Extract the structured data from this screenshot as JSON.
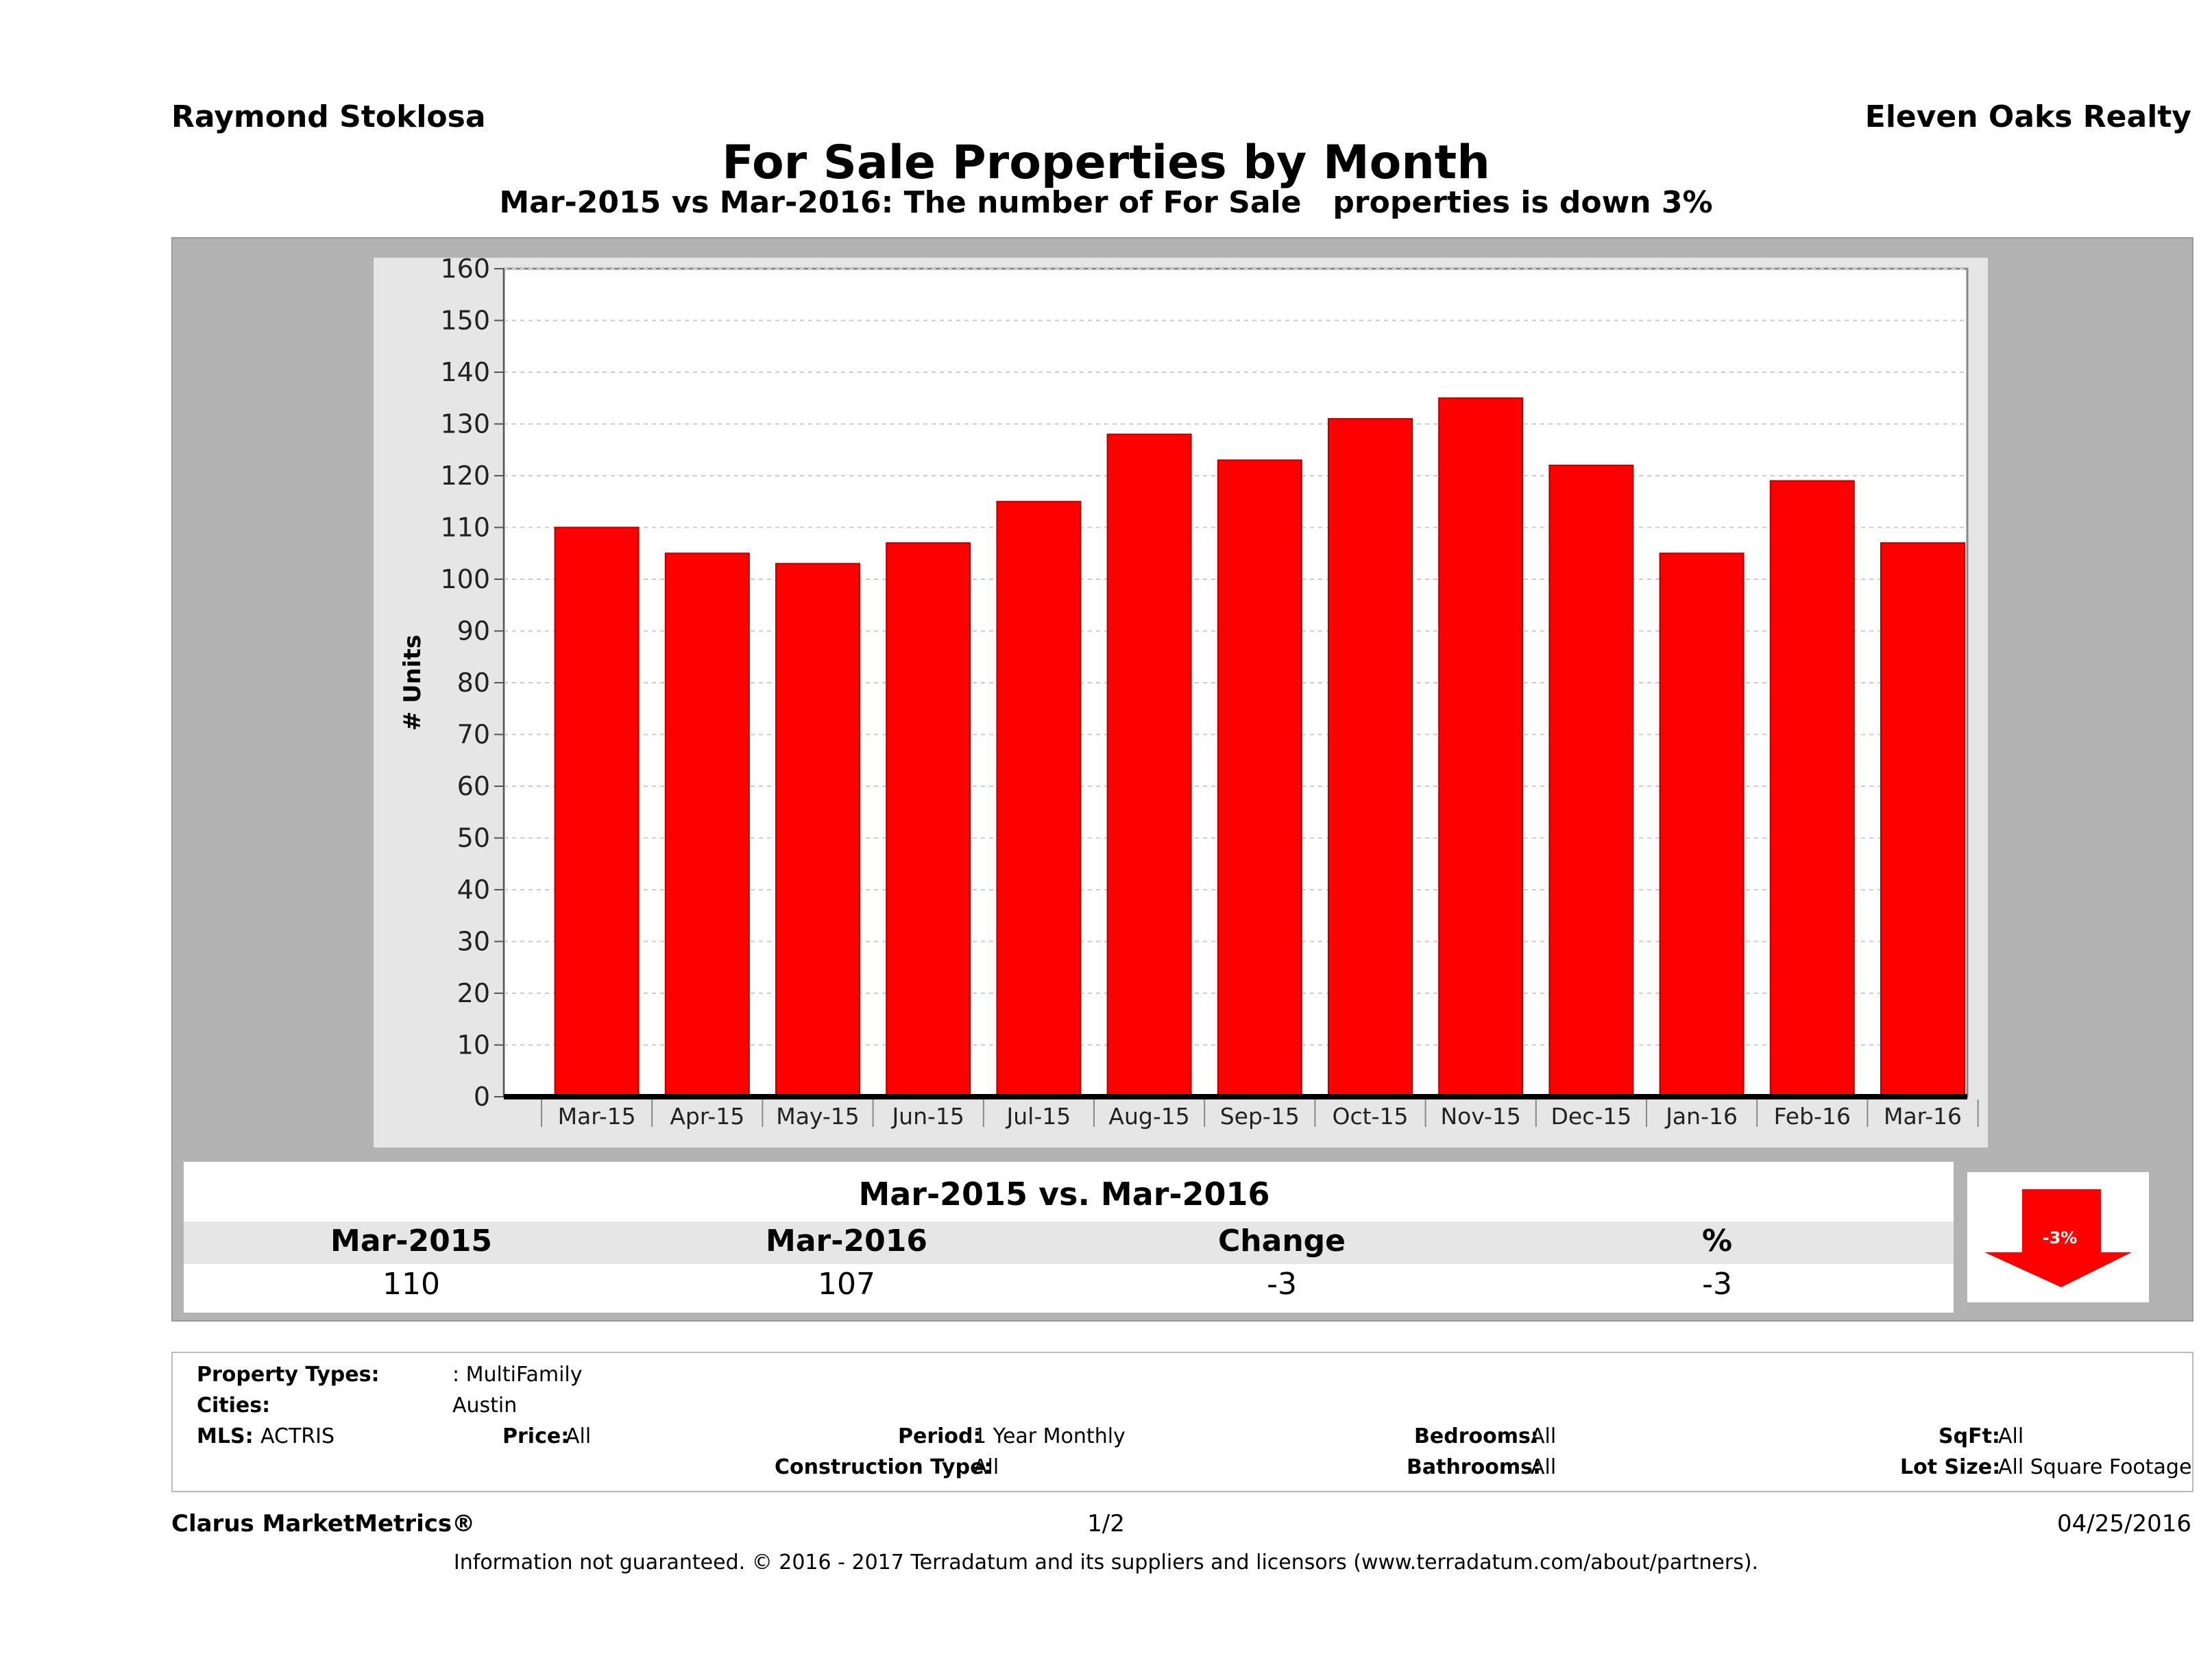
{
  "header": {
    "agent_name": "Raymond Stoklosa",
    "brokerage": "Eleven Oaks Realty",
    "title": "For Sale Properties by Month",
    "subtitle": "Mar-2015 vs Mar-2016: The number of For Sale   properties is down 3%"
  },
  "chart_data": {
    "type": "bar",
    "categories": [
      "Mar-15",
      "Apr-15",
      "May-15",
      "Jun-15",
      "Jul-15",
      "Aug-15",
      "Sep-15",
      "Oct-15",
      "Nov-15",
      "Dec-15",
      "Jan-16",
      "Feb-16",
      "Mar-16"
    ],
    "values": [
      110,
      105,
      103,
      107,
      115,
      128,
      123,
      131,
      135,
      122,
      105,
      119,
      107
    ],
    "ylabel": "# Units",
    "ylim": [
      0,
      160
    ],
    "yticks": [
      0,
      10,
      20,
      30,
      40,
      50,
      60,
      70,
      80,
      90,
      100,
      110,
      120,
      130,
      140,
      150,
      160
    ],
    "grid": true,
    "bar_color": "#ff0000"
  },
  "comparison": {
    "title": "Mar-2015 vs. Mar-2016",
    "columns": [
      "Mar-2015",
      "Mar-2016",
      "Change",
      "%"
    ],
    "values": [
      "110",
      "107",
      "-3",
      "-3"
    ],
    "indicator_label": "-3%",
    "indicator_color": "#ff0000"
  },
  "filters": {
    "property_types_label": "Property Types:",
    "property_types_value": ": MultiFamily",
    "cities_label": "Cities:",
    "cities_value": "Austin",
    "mls_label": "MLS:",
    "mls_value": "ACTRIS",
    "price_label": "Price:",
    "price_value": "All",
    "period_label": "Period:",
    "period_value": "1 Year Monthly",
    "construction_label": "Construction Type:",
    "construction_value": "All",
    "bedrooms_label": "Bedrooms:",
    "bedrooms_value": "All",
    "bathrooms_label": "Bathrooms:",
    "bathrooms_value": "All",
    "sqft_label": "SqFt:",
    "sqft_value": "All",
    "lotsize_label": "Lot Size:",
    "lotsize_value": "All Square Footage"
  },
  "footer": {
    "brand": "Clarus MarketMetrics®",
    "page": "1/2",
    "date": "04/25/2016",
    "disclaimer": "Information not guaranteed. © 2016 - 2017 Terradatum and its suppliers and licensors (www.terradatum.com/about/partners)."
  }
}
